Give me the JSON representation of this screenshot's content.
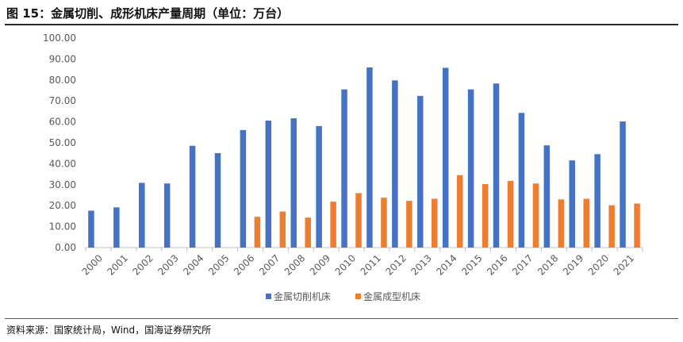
{
  "title": "图 15：金属切削、成形机床产量周期（单位：万台）",
  "source": "资料来源：国家统计局，Wind，国海证券研究所",
  "colors": {
    "series1": "#4472C4",
    "series2": "#ED7D31",
    "axis": "#BFBFBF",
    "text": "#595959"
  },
  "chart_data": {
    "type": "bar",
    "categories": [
      "2000",
      "2001",
      "2002",
      "2003",
      "2004",
      "2005",
      "2006",
      "2007",
      "2008",
      "2009",
      "2010",
      "2011",
      "2012",
      "2013",
      "2014",
      "2015",
      "2016",
      "2017",
      "2018",
      "2019",
      "2020",
      "2021"
    ],
    "series": [
      {
        "name": "金属切削机床",
        "values": [
          17.6,
          19.2,
          30.9,
          30.6,
          48.6,
          45.1,
          56.1,
          60.6,
          61.7,
          58.0,
          75.5,
          86.0,
          79.8,
          72.4,
          85.8,
          75.5,
          78.3,
          64.3,
          48.8,
          41.6,
          44.6,
          60.2
        ]
      },
      {
        "name": "金属成型机床",
        "values": [
          null,
          null,
          null,
          null,
          null,
          null,
          14.7,
          17.2,
          14.3,
          21.9,
          26.0,
          23.8,
          22.3,
          23.3,
          34.6,
          30.3,
          31.8,
          30.6,
          23.0,
          23.3,
          20.2,
          21.0
        ]
      }
    ],
    "yticks": [
      "0.00",
      "10.00",
      "20.00",
      "30.00",
      "40.00",
      "50.00",
      "60.00",
      "70.00",
      "80.00",
      "90.00",
      "100.00"
    ],
    "ylim": [
      0,
      100
    ],
    "grid": false,
    "legend": "bottom"
  }
}
